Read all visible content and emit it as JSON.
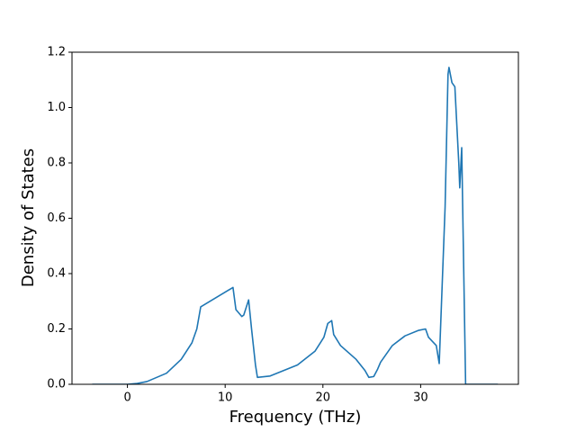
{
  "chart_data": {
    "type": "line",
    "x_label": "Frequency (THz)",
    "y_label": "Density of States",
    "xlim": [
      -5.67,
      40.0
    ],
    "ylim": [
      0,
      1.2
    ],
    "xticks": [
      0,
      10,
      20,
      30
    ],
    "yticks": [
      {
        "value": 0,
        "label": "0.0"
      },
      0.2,
      0.4,
      0.6,
      0.8,
      {
        "value": 1,
        "label": "1.0"
      },
      1.2
    ],
    "grid": false,
    "series": [
      {
        "color": "#1f77b4",
        "x": [
          -3.6,
          0,
          1,
          2,
          4,
          5.5,
          6.6,
          7.1,
          7.5,
          10.8,
          11.1,
          11.7,
          11.9,
          12.4,
          12.7,
          13.1,
          13.3,
          14.6,
          17.4,
          19.2,
          20.1,
          20.5,
          20.9,
          21.1,
          21.8,
          23.4,
          24.3,
          24.7,
          25.2,
          25.6,
          25.9,
          27.1,
          28.4,
          29.8,
          30.5,
          30.8,
          31.6,
          31.9,
          32.5,
          32.8,
          32.9,
          33.2,
          33.5,
          33.9,
          34.0,
          34.2,
          34.3,
          34.6,
          37.9
        ],
        "values": [
          0,
          0,
          0.003,
          0.01,
          0.04,
          0.09,
          0.15,
          0.2,
          0.28,
          0.35,
          0.27,
          0.245,
          0.25,
          0.305,
          0.2,
          0.07,
          0.025,
          0.03,
          0.07,
          0.12,
          0.17,
          0.22,
          0.23,
          0.18,
          0.14,
          0.09,
          0.05,
          0.025,
          0.028,
          0.055,
          0.08,
          0.14,
          0.175,
          0.195,
          0.2,
          0.17,
          0.14,
          0.075,
          0.64,
          1.12,
          1.145,
          1.09,
          1.075,
          0.8,
          0.71,
          0.855,
          0.64,
          0,
          0
        ]
      }
    ]
  }
}
